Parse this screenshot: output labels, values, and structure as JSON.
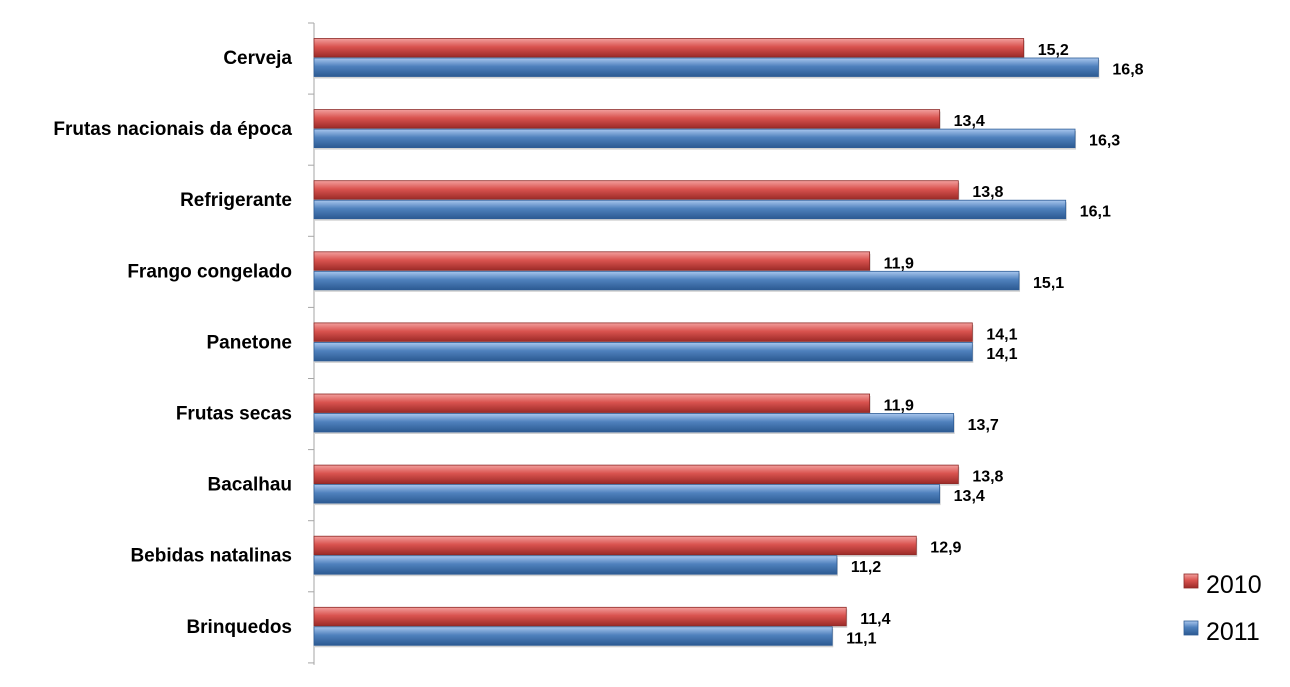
{
  "chart_data": {
    "type": "bar",
    "orientation": "horizontal",
    "categories": [
      "Cerveja",
      "Frutas nacionais da época",
      "Refrigerante",
      "Frango congelado",
      "Panetone",
      "Frutas secas",
      "Bacalhau",
      "Bebidas natalinas",
      "Brinquedos"
    ],
    "series": [
      {
        "name": "2010",
        "color": "#c0504d",
        "values": [
          15.2,
          13.4,
          13.8,
          11.9,
          14.1,
          11.9,
          13.8,
          12.9,
          11.4
        ],
        "labels": [
          "15,2",
          "13,4",
          "13,8",
          "11,9",
          "14,1",
          "11,9",
          "13,8",
          "12,9",
          "11,4"
        ]
      },
      {
        "name": "2011",
        "color": "#4f81bd",
        "values": [
          16.8,
          16.3,
          16.1,
          15.1,
          14.1,
          13.7,
          13.4,
          11.2,
          11.1
        ],
        "labels": [
          "16,8",
          "16,3",
          "16,1",
          "15,1",
          "14,1",
          "13,7",
          "13,4",
          "11,2",
          "11,1"
        ]
      }
    ],
    "xlim": [
      0,
      17.2
    ],
    "grid": false,
    "legend_position": "bottom-right",
    "data_labels": true
  }
}
